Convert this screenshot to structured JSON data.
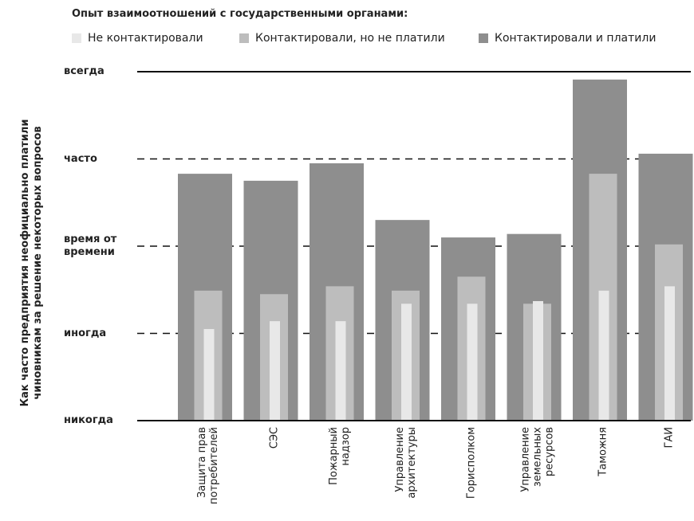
{
  "chart_data": {
    "type": "bar",
    "title": "Опыт взаимоотношений с государственными органами:",
    "y_label": "Как часто предприятия неофициально платили чиновникам за решение некоторых вопросов",
    "categories": [
      "Защита прав потребителей",
      "СЭС",
      "Пожарный надзор",
      "Управление архитектуры",
      "Горисполком",
      "Управление земельных ресурсов",
      "Таможня",
      "ГАИ"
    ],
    "series": [
      {
        "name": "Не контактировали",
        "color": "#e8e8e8",
        "values": [
          1.05,
          1.14,
          1.14,
          1.34,
          1.34,
          1.37,
          1.49,
          1.54
        ]
      },
      {
        "name": "Контактировали, но не платили",
        "color": "#bdbdbd",
        "values": [
          1.49,
          1.45,
          1.54,
          1.49,
          1.65,
          1.34,
          2.83,
          2.02
        ]
      },
      {
        "name": "Контактировали и платили",
        "color": "#8e8e8e",
        "values": [
          2.83,
          2.75,
          2.95,
          2.3,
          2.1,
          2.14,
          3.91,
          3.06
        ]
      }
    ],
    "ylim": [
      0,
      4
    ],
    "yticks": [
      {
        "value": 0,
        "label": "никогда"
      },
      {
        "value": 1,
        "label": "иногда"
      },
      {
        "value": 2,
        "label": "время от времени"
      },
      {
        "value": 3,
        "label": "часто"
      },
      {
        "value": 4,
        "label": "всегда"
      }
    ],
    "grid": true
  }
}
